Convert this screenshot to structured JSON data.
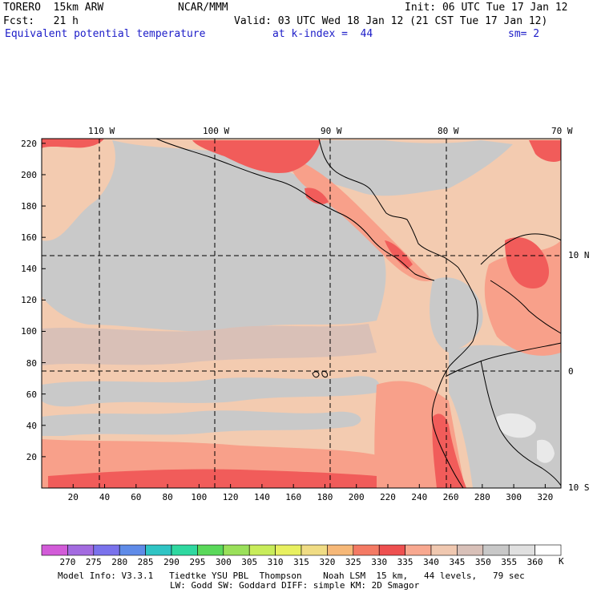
{
  "header": {
    "model_name": "TORERO  15km ARW",
    "org": "NCAR/MMM",
    "init": "Init: 06 UTC Tue 17 Jan 12",
    "forecast": "Fcst:   21 h",
    "valid": "Valid: 03 UTC Wed 18 Jan 12 (21 CST Tue 17 Jan 12)",
    "field_name": "Equivalent potential temperature",
    "level": "at k-index =  44",
    "smoothing": "sm= 2"
  },
  "map": {
    "lon_labels": [
      "110 W",
      "100 W",
      "90 W",
      "80 W",
      "70 W"
    ],
    "lat_labels": [
      "10 N",
      "0",
      "10 S"
    ],
    "x_ticks": [
      "20",
      "40",
      "60",
      "80",
      "100",
      "120",
      "140",
      "160",
      "180",
      "200",
      "220",
      "240",
      "260",
      "280",
      "300",
      "320"
    ],
    "y_ticks": [
      "220",
      "200",
      "180",
      "160",
      "140",
      "120",
      "100",
      "80",
      "60",
      "40",
      "20"
    ],
    "palette": {
      "tan": "#f3cbb0",
      "gray": "#c9c9c9",
      "taupe": "#d9c0b7",
      "salmon": "#f8a08a",
      "red": "#f15c5a",
      "lightgray": "#e9e9e9",
      "coast": "#000000",
      "grid": "#000000"
    }
  },
  "colorbar": {
    "unit": "K",
    "labels": [
      "270",
      "275",
      "280",
      "285",
      "290",
      "295",
      "300",
      "305",
      "310",
      "315",
      "320",
      "325",
      "330",
      "335",
      "340",
      "345",
      "350",
      "355",
      "360"
    ],
    "colors": [
      "#d25bd8",
      "#a36be0",
      "#7a72ec",
      "#5f8be8",
      "#2fc4c4",
      "#2fd8a0",
      "#5ad85a",
      "#9ae05a",
      "#c8ec5a",
      "#e8f060",
      "#f0dc84",
      "#f6b878",
      "#f47a64",
      "#ee5050",
      "#f8a890",
      "#f0c8b0",
      "#d8c0b8",
      "#c8c8c8",
      "#e0e0e0",
      "#ffffff"
    ]
  },
  "footer": {
    "line1": "Model Info: V3.3.1   Tiedtke YSU PBL  Thompson    Noah LSM  15 km,   44 levels,   79 sec",
    "line2": "LW: Godd SW: Goddard DIFF: simple KM: 2D Smagor"
  }
}
